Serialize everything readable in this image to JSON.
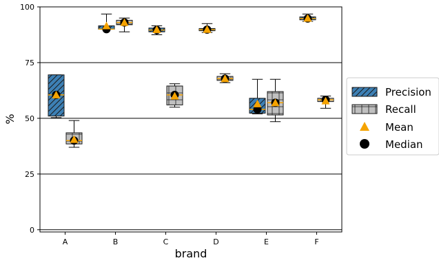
{
  "chart_data": {
    "type": "box",
    "xlabel": "brand",
    "ylabel": "%",
    "categories": [
      "A",
      "B",
      "C",
      "D",
      "E",
      "F"
    ],
    "ylim": [
      -1,
      100
    ],
    "yticks": [
      0,
      25,
      50,
      75,
      100
    ],
    "grid": "horizontal",
    "legend_position": "right",
    "series": [
      {
        "name": "Precision",
        "color": "#3d80b5",
        "hatch": "diagonal",
        "boxes": [
          {
            "category": "A",
            "whislo": 50.3,
            "q1": 51,
            "median": 60.5,
            "q3": 69.5,
            "whishi": 69.5,
            "mean": 60.5
          },
          {
            "category": "B",
            "whislo": 90.0,
            "q1": 90.0,
            "median": 90.0,
            "q3": 91.5,
            "whishi": 96.8,
            "mean": 91.5
          },
          {
            "category": "C",
            "whislo": 87.5,
            "q1": 88.8,
            "median": 89.6,
            "q3": 90.5,
            "whishi": 91.5,
            "mean": 89.8
          },
          {
            "category": "D",
            "whislo": 88.5,
            "q1": 89.3,
            "median": 89.8,
            "q3": 90.3,
            "whishi": 92.5,
            "mean": 89.9
          },
          {
            "category": "E",
            "whislo": 52.0,
            "q1": 52.3,
            "median": 54.0,
            "q3": 59.0,
            "whishi": 67.5,
            "mean": 56.5
          },
          {
            "category": "F",
            "whislo": 93.5,
            "q1": 94.2,
            "median": 94.8,
            "q3": 95.5,
            "whishi": 96.8,
            "mean": 94.9
          }
        ]
      },
      {
        "name": "Recall",
        "color": "#c0c0c0",
        "hatch": "cross",
        "boxes": [
          {
            "category": "A",
            "whislo": 37.0,
            "q1": 38.5,
            "median": 40.0,
            "q3": 43.5,
            "whishi": 49.0,
            "mean": 40.5
          },
          {
            "category": "B",
            "whislo": 88.8,
            "q1": 92.0,
            "median": 93.0,
            "q3": 94.0,
            "whishi": 95.0,
            "mean": 93.0
          },
          {
            "category": "C",
            "whislo": 55.0,
            "q1": 56.0,
            "median": 60.5,
            "q3": 64.5,
            "whishi": 65.5,
            "mean": 60.0
          },
          {
            "category": "D",
            "whislo": 66.0,
            "q1": 67.0,
            "median": 67.8,
            "q3": 68.8,
            "whishi": 70.0,
            "mean": 67.8
          },
          {
            "category": "E",
            "whislo": 48.5,
            "q1": 51.5,
            "median": 57.0,
            "q3": 62.0,
            "whishi": 67.5,
            "mean": 57.0
          },
          {
            "category": "F",
            "whislo": 54.5,
            "q1": 57.5,
            "median": 58.3,
            "q3": 59.0,
            "whishi": 60.0,
            "mean": 57.8
          }
        ]
      }
    ],
    "legend": [
      {
        "label": "Precision",
        "marker": "hatched-box-blue"
      },
      {
        "label": "Recall",
        "marker": "hatched-box-gray"
      },
      {
        "label": "Mean",
        "marker": "triangle",
        "color": "#f5a300"
      },
      {
        "label": "Median",
        "marker": "circle",
        "color": "#000000"
      }
    ]
  }
}
